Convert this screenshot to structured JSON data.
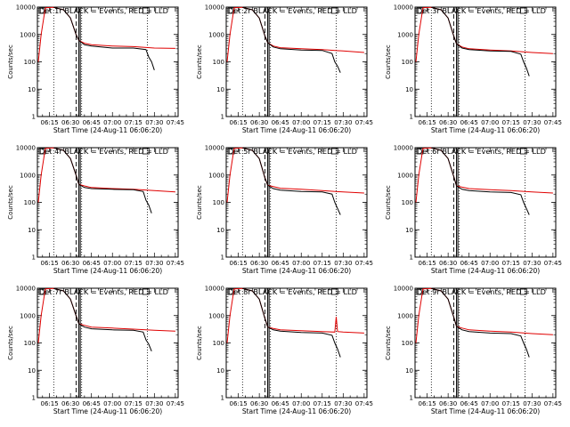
{
  "figure": {
    "background": "#ffffff",
    "axis_color": "#000000"
  },
  "chart_data": [
    {
      "type": "line",
      "title": "Det 1r BLACK = Events, RED = LLD",
      "xlabel": "Start Time (24-Aug-11 06:06:20)",
      "ylabel": "Counts/sec",
      "xticks": [
        "06:15",
        "06:30",
        "06:45",
        "07:00",
        "07:15",
        "07:30",
        "07:45"
      ],
      "yticks": [
        "1",
        "10",
        "100",
        "1000",
        "10000"
      ],
      "yscale": "log",
      "ylim": [
        1,
        10000
      ],
      "xlim": [
        "06:06:20",
        "07:47"
      ],
      "vlines_dotted": [
        "06:18",
        "06:38",
        "07:25"
      ],
      "vline_dashed": "06:34",
      "vlines_solid": [
        "06:36",
        "06:37"
      ],
      "series": [
        {
          "color": "#000000",
          "x": [
            "06:18",
            "06:25",
            "06:30",
            "06:34",
            "06:36",
            "06:40",
            "06:45",
            "07:00",
            "07:15",
            "07:24",
            "07:26",
            "07:28",
            "07:30"
          ],
          "y": [
            9800,
            8000,
            4000,
            1000,
            600,
            420,
            380,
            320,
            320,
            280,
            150,
            100,
            50
          ]
        },
        {
          "color": "#e00000",
          "x": [
            "06:07",
            "06:09",
            "06:12",
            "06:18",
            "06:25",
            "06:30",
            "06:34",
            "06:36",
            "06:40",
            "06:45",
            "07:00",
            "07:15",
            "07:30",
            "07:45"
          ],
          "y": [
            100,
            1000,
            9500,
            9800,
            8000,
            4000,
            1000,
            600,
            480,
            420,
            380,
            360,
            320,
            310
          ]
        }
      ]
    },
    {
      "type": "line",
      "title": "Det 2r BLACK = Events, RED = LLD",
      "xlabel": "Start Time (24-Aug-11 06:06:20)",
      "ylabel": "Counts/sec",
      "xticks": [
        "06:15",
        "06:30",
        "06:45",
        "07:00",
        "07:15",
        "07:30",
        "07:45"
      ],
      "yticks": [
        "1",
        "10",
        "100",
        "1000",
        "10000"
      ],
      "yscale": "log",
      "ylim": [
        1,
        10000
      ],
      "xlim": [
        "06:06:20",
        "07:47"
      ],
      "vlines_dotted": [
        "06:18",
        "06:38",
        "07:25"
      ],
      "vline_dashed": "06:34",
      "vlines_solid": [
        "06:36",
        "06:37"
      ],
      "series": [
        {
          "color": "#000000",
          "x": [
            "06:18",
            "06:25",
            "06:30",
            "06:34",
            "06:36",
            "06:40",
            "06:45",
            "07:00",
            "07:15",
            "07:22",
            "07:24",
            "07:26",
            "07:28"
          ],
          "y": [
            9800,
            8000,
            4000,
            900,
            500,
            350,
            300,
            270,
            260,
            200,
            100,
            70,
            40
          ]
        },
        {
          "color": "#e00000",
          "x": [
            "06:07",
            "06:09",
            "06:12",
            "06:18",
            "06:25",
            "06:30",
            "06:34",
            "06:36",
            "06:40",
            "06:45",
            "07:00",
            "07:15",
            "07:30",
            "07:45"
          ],
          "y": [
            100,
            1000,
            9500,
            9800,
            8000,
            4000,
            900,
            500,
            380,
            330,
            300,
            280,
            250,
            220
          ]
        }
      ]
    },
    {
      "type": "line",
      "title": "Det 3r BLACK = Events, RED = LLD",
      "xlabel": "Start Time (24-Aug-11 06:06:20)",
      "ylabel": "Counts/sec",
      "xticks": [
        "06:15",
        "06:30",
        "06:45",
        "07:00",
        "07:15",
        "07:30",
        "07:45"
      ],
      "yticks": [
        "1",
        "10",
        "100",
        "1000",
        "10000"
      ],
      "yscale": "log",
      "ylim": [
        1,
        10000
      ],
      "xlim": [
        "06:06:20",
        "07:47"
      ],
      "vlines_dotted": [
        "06:18",
        "06:38",
        "07:25"
      ],
      "vline_dashed": "06:34",
      "vlines_solid": [
        "06:36",
        "06:37"
      ],
      "series": [
        {
          "color": "#000000",
          "x": [
            "06:18",
            "06:25",
            "06:30",
            "06:34",
            "06:36",
            "06:40",
            "06:45",
            "07:00",
            "07:15",
            "07:22",
            "07:24",
            "07:26",
            "07:28"
          ],
          "y": [
            9800,
            8000,
            4000,
            900,
            450,
            320,
            280,
            250,
            240,
            190,
            100,
            60,
            30
          ]
        },
        {
          "color": "#e00000",
          "x": [
            "06:07",
            "06:09",
            "06:12",
            "06:18",
            "06:25",
            "06:30",
            "06:34",
            "06:36",
            "06:40",
            "06:45",
            "07:00",
            "07:15",
            "07:30",
            "07:45"
          ],
          "y": [
            100,
            1000,
            9500,
            9800,
            8000,
            4000,
            900,
            450,
            350,
            300,
            270,
            250,
            220,
            200
          ]
        }
      ]
    },
    {
      "type": "line",
      "title": "Det 4r BLACK = Events, RED = LLD",
      "xlabel": "Start Time (24-Aug-11 06:06:20)",
      "ylabel": "Counts/sec",
      "xticks": [
        "06:15",
        "06:30",
        "06:45",
        "07:00",
        "07:15",
        "07:30",
        "07:45"
      ],
      "yticks": [
        "1",
        "10",
        "100",
        "1000",
        "10000"
      ],
      "yscale": "log",
      "ylim": [
        1,
        10000
      ],
      "xlim": [
        "06:06:20",
        "07:47"
      ],
      "vlines_dotted": [
        "06:18",
        "06:38",
        "07:25"
      ],
      "vline_dashed": "06:34",
      "vlines_solid": [
        "06:36",
        "06:37"
      ],
      "series": [
        {
          "color": "#000000",
          "x": [
            "06:18",
            "06:25",
            "06:30",
            "06:34",
            "06:36",
            "06:40",
            "06:45",
            "07:00",
            "07:15",
            "07:22",
            "07:24",
            "07:26",
            "07:28"
          ],
          "y": [
            9800,
            8000,
            4000,
            1000,
            450,
            350,
            320,
            300,
            290,
            250,
            120,
            80,
            40
          ]
        },
        {
          "color": "#e00000",
          "x": [
            "06:07",
            "06:09",
            "06:12",
            "06:18",
            "06:25",
            "06:30",
            "06:34",
            "06:36",
            "06:40",
            "06:45",
            "07:00",
            "07:15",
            "07:30",
            "07:45"
          ],
          "y": [
            100,
            1000,
            9500,
            9800,
            8000,
            4000,
            1000,
            450,
            400,
            350,
            320,
            300,
            270,
            240
          ]
        }
      ]
    },
    {
      "type": "line",
      "title": "Det 5r BLACK = Events, RED = LLD",
      "xlabel": "Start Time (24-Aug-11 06:06:20)",
      "ylabel": "Counts/sec",
      "xticks": [
        "06:15",
        "06:30",
        "06:45",
        "07:00",
        "07:15",
        "07:30",
        "07:45"
      ],
      "yticks": [
        "1",
        "10",
        "100",
        "1000",
        "10000"
      ],
      "yscale": "log",
      "ylim": [
        1,
        10000
      ],
      "xlim": [
        "06:06:20",
        "07:47"
      ],
      "vlines_dotted": [
        "06:18",
        "06:38",
        "07:25"
      ],
      "vline_dashed": "06:34",
      "vlines_solid": [
        "06:36",
        "06:37"
      ],
      "series": [
        {
          "color": "#000000",
          "x": [
            "06:18",
            "06:25",
            "06:30",
            "06:34",
            "06:36",
            "06:40",
            "06:45",
            "07:00",
            "07:15",
            "07:22",
            "07:24",
            "07:26",
            "07:28"
          ],
          "y": [
            9800,
            8000,
            4000,
            800,
            420,
            320,
            280,
            250,
            240,
            200,
            100,
            60,
            35
          ]
        },
        {
          "color": "#e00000",
          "x": [
            "06:07",
            "06:09",
            "06:12",
            "06:18",
            "06:25",
            "06:30",
            "06:34",
            "06:36",
            "06:40",
            "06:45",
            "07:00",
            "07:15",
            "07:30",
            "07:45"
          ],
          "y": [
            100,
            1000,
            9500,
            9800,
            8000,
            4000,
            800,
            420,
            380,
            330,
            300,
            270,
            240,
            220
          ]
        }
      ]
    },
    {
      "type": "line",
      "title": "Det 6r BLACK = Events, RED = LLD",
      "xlabel": "Start Time (24-Aug-11 06:06:20)",
      "ylabel": "Counts/sec",
      "xticks": [
        "06:15",
        "06:30",
        "06:45",
        "07:00",
        "07:15",
        "07:30",
        "07:45"
      ],
      "yticks": [
        "1",
        "10",
        "100",
        "1000",
        "10000"
      ],
      "yscale": "log",
      "ylim": [
        1,
        10000
      ],
      "xlim": [
        "06:06:20",
        "07:47"
      ],
      "vlines_dotted": [
        "06:18",
        "06:38",
        "07:25"
      ],
      "vline_dashed": "06:34",
      "vlines_solid": [
        "06:36",
        "06:37"
      ],
      "series": [
        {
          "color": "#000000",
          "x": [
            "06:18",
            "06:25",
            "06:30",
            "06:34",
            "06:36",
            "06:40",
            "06:45",
            "07:00",
            "07:15",
            "07:22",
            "07:24",
            "07:26",
            "07:28"
          ],
          "y": [
            9800,
            8000,
            4000,
            900,
            400,
            300,
            270,
            240,
            230,
            190,
            100,
            60,
            35
          ]
        },
        {
          "color": "#e00000",
          "x": [
            "06:07",
            "06:09",
            "06:12",
            "06:18",
            "06:25",
            "06:30",
            "06:34",
            "06:36",
            "06:40",
            "06:45",
            "07:00",
            "07:15",
            "07:30",
            "07:45"
          ],
          "y": [
            100,
            1000,
            9500,
            9800,
            8000,
            4000,
            900,
            400,
            360,
            320,
            290,
            270,
            240,
            220
          ]
        }
      ]
    },
    {
      "type": "line",
      "title": "Det 7r BLACK = Events, RED = LLD",
      "xlabel": "Start Time (24-Aug-11 06:06:20)",
      "ylabel": "Counts/sec",
      "xticks": [
        "06:15",
        "06:30",
        "06:45",
        "07:00",
        "07:15",
        "07:30",
        "07:45"
      ],
      "yticks": [
        "1",
        "10",
        "100",
        "1000",
        "10000"
      ],
      "yscale": "log",
      "ylim": [
        1,
        10000
      ],
      "xlim": [
        "06:06:20",
        "07:47"
      ],
      "vlines_dotted": [
        "06:18",
        "06:38",
        "07:25"
      ],
      "vline_dashed": "06:34",
      "vlines_solid": [
        "06:36",
        "06:37"
      ],
      "series": [
        {
          "color": "#000000",
          "x": [
            "06:18",
            "06:25",
            "06:30",
            "06:34",
            "06:36",
            "06:40",
            "06:45",
            "07:00",
            "07:15",
            "07:22",
            "07:24",
            "07:26",
            "07:28"
          ],
          "y": [
            9800,
            8000,
            4000,
            1000,
            500,
            380,
            330,
            300,
            290,
            250,
            130,
            90,
            50
          ]
        },
        {
          "color": "#e00000",
          "x": [
            "06:07",
            "06:09",
            "06:12",
            "06:18",
            "06:25",
            "06:30",
            "06:34",
            "06:36",
            "06:40",
            "06:45",
            "07:00",
            "07:15",
            "07:30",
            "07:45"
          ],
          "y": [
            100,
            1000,
            9500,
            9800,
            8000,
            4000,
            1000,
            500,
            440,
            380,
            350,
            320,
            290,
            270
          ]
        }
      ]
    },
    {
      "type": "line",
      "title": "Det 8r BLACK = Events, RED = LLD",
      "xlabel": "Start Time (24-Aug-11 06:06:20)",
      "ylabel": "Counts/sec",
      "xticks": [
        "06:15",
        "06:30",
        "06:45",
        "07:00",
        "07:15",
        "07:30",
        "07:45"
      ],
      "yticks": [
        "1",
        "10",
        "100",
        "1000",
        "10000"
      ],
      "yscale": "log",
      "ylim": [
        1,
        10000
      ],
      "xlim": [
        "06:06:20",
        "07:47"
      ],
      "vlines_dotted": [
        "06:18",
        "06:38",
        "07:25"
      ],
      "vline_dashed": "06:34",
      "vlines_solid": [
        "06:36",
        "06:37"
      ],
      "series": [
        {
          "color": "#000000",
          "x": [
            "06:18",
            "06:25",
            "06:30",
            "06:34",
            "06:36",
            "06:40",
            "06:45",
            "07:00",
            "07:15",
            "07:22",
            "07:24",
            "07:26",
            "07:28"
          ],
          "y": [
            9800,
            8000,
            4000,
            800,
            380,
            300,
            270,
            240,
            230,
            190,
            100,
            60,
            30
          ]
        },
        {
          "color": "#e00000",
          "x": [
            "06:07",
            "06:09",
            "06:12",
            "06:18",
            "06:25",
            "06:30",
            "06:34",
            "06:36",
            "06:40",
            "06:45",
            "07:00",
            "07:15",
            "07:24",
            "07:25",
            "07:26",
            "07:30",
            "07:45"
          ],
          "y": [
            100,
            1000,
            9500,
            9800,
            8000,
            4000,
            800,
            380,
            340,
            300,
            280,
            260,
            250,
            900,
            260,
            250,
            230
          ]
        }
      ]
    },
    {
      "type": "line",
      "title": "Det 9r BLACK = Events, RED = LLD",
      "xlabel": "Start Time (24-Aug-11 06:06:20)",
      "ylabel": "Counts/sec",
      "xticks": [
        "06:15",
        "06:30",
        "06:45",
        "07:00",
        "07:15",
        "07:30",
        "07:45"
      ],
      "yticks": [
        "1",
        "10",
        "100",
        "1000",
        "10000"
      ],
      "yscale": "log",
      "ylim": [
        1,
        10000
      ],
      "xlim": [
        "06:06:20",
        "07:47"
      ],
      "vlines_dotted": [
        "06:18",
        "06:38",
        "07:25"
      ],
      "vline_dashed": "06:34",
      "vlines_solid": [
        "06:36",
        "06:37"
      ],
      "series": [
        {
          "color": "#000000",
          "x": [
            "06:18",
            "06:25",
            "06:30",
            "06:34",
            "06:36",
            "06:40",
            "06:45",
            "07:00",
            "07:15",
            "07:22",
            "07:24",
            "07:26",
            "07:28"
          ],
          "y": [
            9800,
            8000,
            4000,
            900,
            400,
            300,
            260,
            230,
            220,
            180,
            100,
            60,
            30
          ]
        },
        {
          "color": "#e00000",
          "x": [
            "06:07",
            "06:09",
            "06:12",
            "06:18",
            "06:25",
            "06:30",
            "06:34",
            "06:36",
            "06:40",
            "06:45",
            "07:00",
            "07:15",
            "07:30",
            "07:45"
          ],
          "y": [
            100,
            1000,
            9500,
            9800,
            8000,
            4000,
            900,
            400,
            350,
            300,
            270,
            250,
            220,
            200
          ]
        }
      ]
    }
  ]
}
